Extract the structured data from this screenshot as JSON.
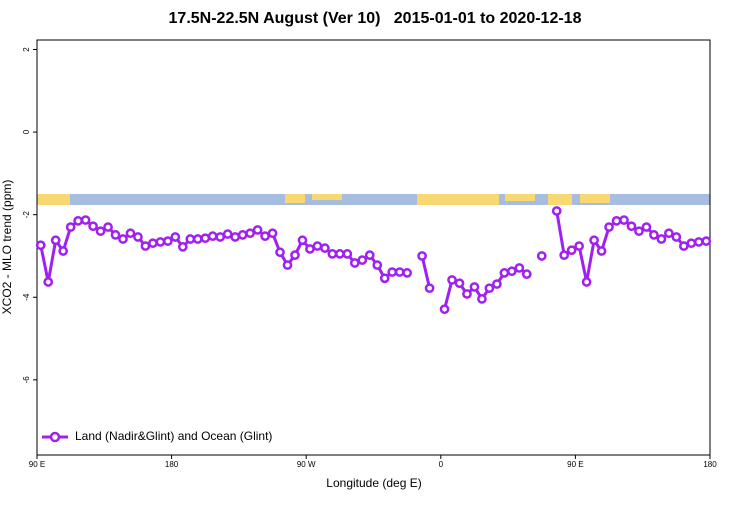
{
  "chart_data": {
    "type": "line",
    "title": "17.5N-22.5N August (Ver 10)   2015-01-01 to 2020-12-18",
    "x_label": "Longitude (deg E)",
    "y_label": "XCO2 - MLO trend (ppm)",
    "xlim": [
      90,
      540
    ],
    "ylim": [
      -7.82,
      2.23
    ],
    "xticks": [
      {
        "value": 90,
        "label": "90 E"
      },
      180,
      {
        "value": 270,
        "label": "90 W"
      },
      {
        "value": 360,
        "label": "0"
      },
      {
        "value": 450,
        "label": "90 E"
      },
      {
        "value": 540,
        "label": "180"
      }
    ],
    "yticks": [
      2,
      0,
      -2,
      -4,
      -6
    ],
    "x": [
      92.5,
      97.5,
      102.5,
      107.5,
      112.5,
      117.5,
      122.5,
      127.5,
      132.5,
      137.5,
      142.5,
      147.5,
      152.5,
      157.5,
      162.5,
      167.5,
      172.5,
      177.5,
      182.5,
      187.5,
      192.5,
      197.5,
      202.5,
      207.5,
      212.5,
      217.5,
      222.5,
      227.5,
      232.5,
      237.5,
      242.5,
      247.5,
      252.5,
      257.5,
      262.5,
      267.5,
      272.5,
      277.5,
      282.5,
      287.5,
      292.5,
      297.5,
      302.5,
      307.5,
      312.5,
      317.5,
      322.5,
      327.5,
      332.5,
      337.5,
      342.5,
      347.5,
      352.5,
      357.5,
      362.5,
      367.5,
      372.5,
      377.5,
      382.5,
      387.5,
      392.5,
      397.5,
      402.5,
      407.5,
      412.5,
      417.5,
      422.5,
      427.5,
      432.5,
      437.5,
      442.5,
      447.5,
      452.5,
      457.5,
      462.5,
      467.5,
      472.5,
      477.5,
      482.5,
      487.5,
      492.5,
      497.5,
      502.5,
      507.5,
      512.5,
      517.5,
      522.5,
      527.5,
      532.5,
      537.5
    ],
    "series": [
      {
        "name": "Land (Nadir&Glint) and Ocean (Glint)",
        "color": "#a020f0",
        "values": [
          -2.74,
          -3.63,
          -2.62,
          -2.88,
          -2.3,
          -2.15,
          -2.13,
          -2.28,
          -2.4,
          -2.3,
          -2.49,
          -2.59,
          -2.45,
          -2.54,
          -2.76,
          -2.69,
          -2.66,
          -2.64,
          -2.54,
          -2.78,
          -2.59,
          -2.59,
          -2.57,
          -2.52,
          -2.54,
          -2.47,
          -2.54,
          -2.49,
          -2.45,
          -2.37,
          -2.52,
          -2.45,
          -2.91,
          -3.22,
          -2.98,
          -2.62,
          -2.83,
          -2.76,
          -2.81,
          -2.95,
          -2.95,
          -2.95,
          -3.17,
          -3.1,
          -2.98,
          -3.22,
          -3.54,
          -3.39,
          -3.39,
          -3.41,
          null,
          -3.0,
          -3.78,
          null,
          -4.29,
          -3.58,
          -3.66,
          -3.92,
          -3.75,
          -4.04,
          -3.78,
          -3.68,
          -3.41,
          -3.37,
          -3.29,
          -3.44,
          null,
          -3.0,
          null,
          -1.91,
          -2.98,
          -2.86,
          -2.76,
          -3.63,
          -2.62,
          -2.88,
          -2.3,
          -2.15,
          -2.13,
          -2.28,
          -2.4,
          -2.3,
          -2.49,
          -2.59,
          -2.45,
          -2.54,
          -2.76,
          -2.69,
          -2.66,
          -2.64
        ]
      }
    ]
  }
}
